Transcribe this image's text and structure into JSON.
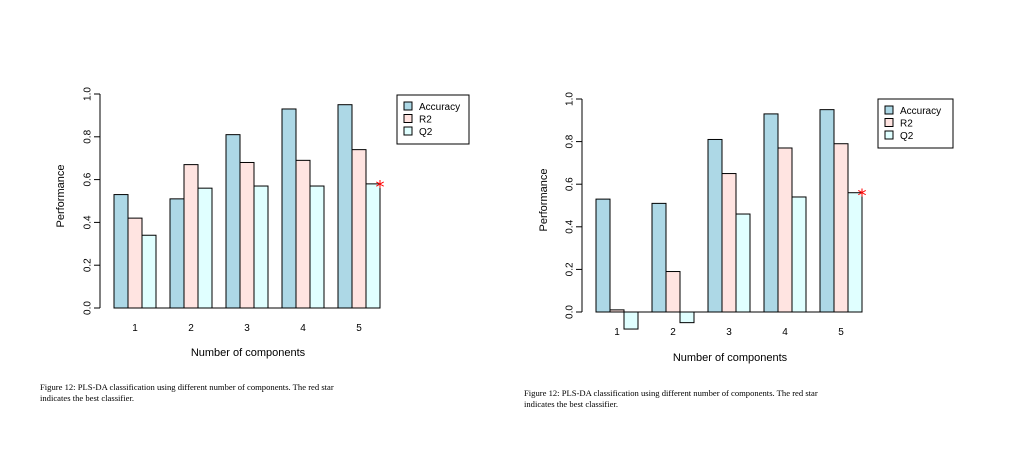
{
  "chart_data": [
    {
      "type": "bar",
      "categories": [
        "1",
        "2",
        "3",
        "4",
        "5"
      ],
      "series": [
        {
          "name": "Accuracy",
          "values": [
            0.53,
            0.51,
            0.81,
            0.93,
            0.95
          ]
        },
        {
          "name": "R2",
          "values": [
            0.42,
            0.67,
            0.68,
            0.69,
            0.74
          ]
        },
        {
          "name": "Q2",
          "values": [
            0.34,
            0.56,
            0.57,
            0.57,
            0.58
          ]
        }
      ],
      "colors": [
        "#add8e6",
        "#ffe4e1",
        "#e0ffff"
      ],
      "xlabel": "Number of components",
      "ylabel": "Performance",
      "ylim": [
        0,
        1
      ],
      "yticks": [
        "0.0",
        "0.2",
        "0.4",
        "0.6",
        "0.8",
        "1.0"
      ],
      "legend_position": "top-right",
      "best_marker": {
        "symbol": "*",
        "color": "#ff0000",
        "category_index": 4
      },
      "caption": "Figure 12: PLS-DA classification using different number of components. The red star indicates the best classifier."
    },
    {
      "type": "bar",
      "categories": [
        "1",
        "2",
        "3",
        "4",
        "5"
      ],
      "series": [
        {
          "name": "Accuracy",
          "values": [
            0.53,
            0.51,
            0.81,
            0.93,
            0.95
          ]
        },
        {
          "name": "R2",
          "values": [
            0.01,
            0.19,
            0.65,
            0.77,
            0.79
          ]
        },
        {
          "name": "Q2",
          "values": [
            -0.08,
            -0.05,
            0.46,
            0.54,
            0.56
          ]
        }
      ],
      "colors": [
        "#add8e6",
        "#ffe4e1",
        "#e0ffff"
      ],
      "xlabel": "Number of components",
      "ylabel": "Performance",
      "ylim": [
        -0.08,
        1
      ],
      "yticks": [
        "0.0",
        "0.2",
        "0.4",
        "0.6",
        "0.8",
        "1.0"
      ],
      "legend_position": "top-right",
      "best_marker": {
        "symbol": "*",
        "color": "#ff0000",
        "category_index": 4
      },
      "caption": "Figure 12: PLS-DA classification using different number of components. The red star indicates the best classifier."
    }
  ]
}
